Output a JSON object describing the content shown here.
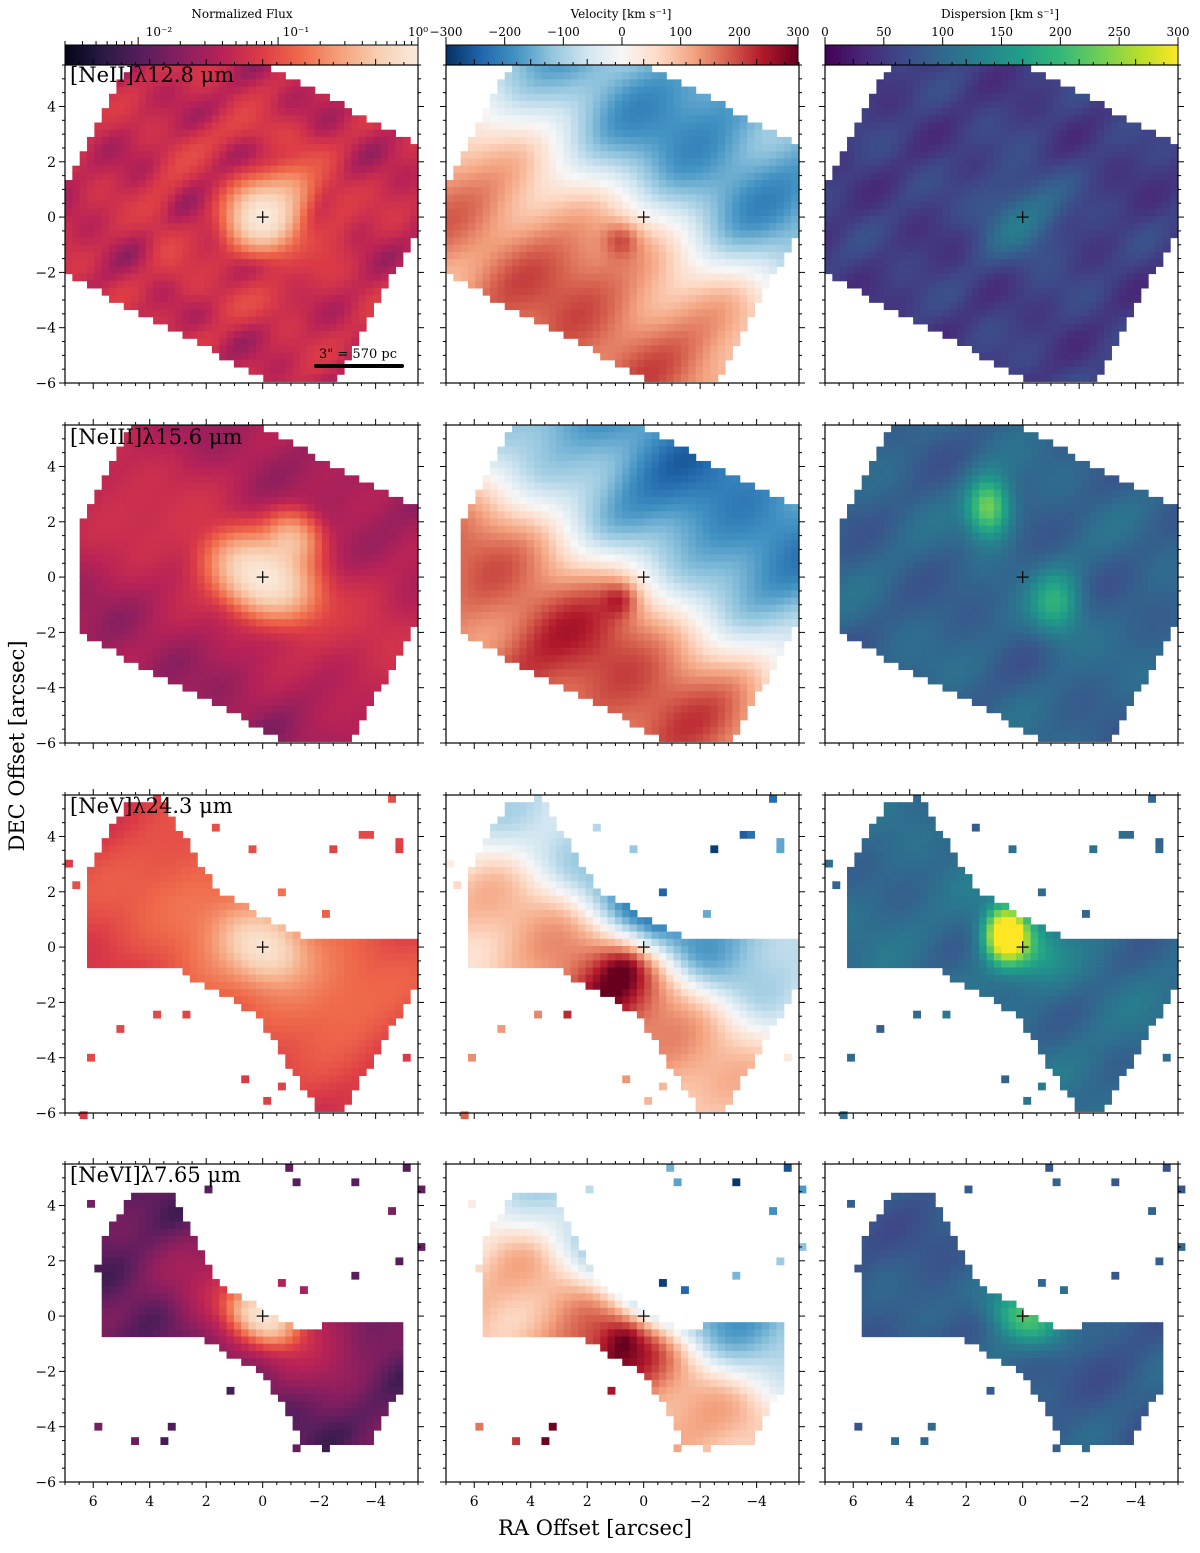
{
  "colors": {
    "flux_cmap": [
      "#03051a",
      "#2b1a44",
      "#5a1e5e",
      "#8a1f5f",
      "#b72257",
      "#dc3b46",
      "#ef6a4a",
      "#f5a07a",
      "#f8cfb2",
      "#faebdd"
    ],
    "velocity_cmap": [
      "#053061",
      "#2166ac",
      "#4393c3",
      "#92c5de",
      "#d1e5f0",
      "#f7f7f7",
      "#fddbc7",
      "#f4a582",
      "#d6604d",
      "#b2182b",
      "#67001f"
    ],
    "dispersion_cmap": [
      "#440154",
      "#482878",
      "#3e4989",
      "#31688e",
      "#26828e",
      "#1f9e89",
      "#35b779",
      "#6ece58",
      "#b5de2b",
      "#fde725"
    ]
  },
  "colorbars": [
    {
      "label": "Normalized Flux",
      "ticks": [
        "10⁻²",
        "10⁻¹",
        "10⁰"
      ]
    },
    {
      "label": "Velocity [km s⁻¹]",
      "ticks": [
        "−300",
        "−200",
        "−100",
        "0",
        "100",
        "200",
        "300"
      ]
    },
    {
      "label": "Dispersion [km s⁻¹]",
      "ticks": [
        "0",
        "50",
        "100",
        "150",
        "200",
        "250",
        "300"
      ]
    }
  ],
  "rows": [
    {
      "label": "[NeII]λ12.8 μm"
    },
    {
      "label": "[NeIII]λ15.6 μm"
    },
    {
      "label": "[NeV]λ24.3 μm"
    },
    {
      "label": "[NeVI]λ7.65 μm"
    }
  ],
  "scale_bar": {
    "label": "3\" = 570 pc"
  },
  "axes": {
    "xlabel": "RA Offset [arcsec]",
    "ylabel": "DEC Offset [arcsec]",
    "xticks": [
      "6",
      "4",
      "2",
      "0",
      "−2",
      "−4"
    ],
    "yticks": [
      "4",
      "2",
      "0",
      "−2",
      "−4",
      "−6"
    ]
  },
  "chart_data": {
    "type": "heatmap",
    "title": "",
    "xlabel": "RA Offset [arcsec]",
    "ylabel": "DEC Offset [arcsec]",
    "xlim": [
      7,
      -5.5
    ],
    "ylim": [
      -6,
      5.5
    ],
    "xticks": [
      6,
      4,
      2,
      0,
      -2,
      -4
    ],
    "yticks": [
      4,
      2,
      0,
      -2,
      -4,
      -6
    ],
    "center_marker": [
      0,
      0
    ],
    "columns": [
      {
        "quantity": "Normalized Flux",
        "scale": "log",
        "range": [
          0.003,
          1
        ]
      },
      {
        "quantity": "Velocity [km s⁻¹]",
        "scale": "linear",
        "range": [
          -300,
          300
        ]
      },
      {
        "quantity": "Dispersion [km s⁻¹]",
        "scale": "linear",
        "range": [
          0,
          300
        ]
      }
    ],
    "rows": [
      "[NeII]λ12.8 μm",
      "[NeIII]λ15.6 μm",
      "[NeV]λ24.3 μm",
      "[NeVI]λ7.65 μm"
    ],
    "scale_bar": {
      "label": "3\" = 570 pc",
      "length_arcsec": 3
    }
  }
}
